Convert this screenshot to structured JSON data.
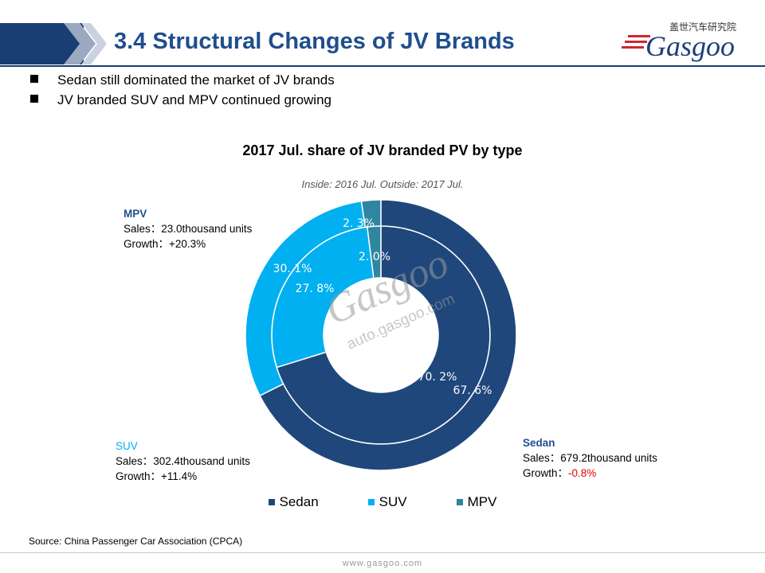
{
  "header": {
    "title": "3.4 Structural Changes of JV Brands",
    "logo_cn": "盖世汽车研究院",
    "logo_en": "Gasgoo"
  },
  "bullets": [
    "Sedan still dominated the market of JV brands",
    "JV branded SUV and MPV continued growing"
  ],
  "annotations": {
    "mpv": {
      "name": "MPV",
      "sales": "Sales：23.0thousand units",
      "growth_prefix": "Growth：",
      "growth": "+20.3%"
    },
    "suv": {
      "name": "SUV",
      "sales": "Sales：302.4thousand units",
      "growth_prefix": "Growth：",
      "growth": "+11.4%"
    },
    "sedan": {
      "name": "Sedan",
      "sales": "Sales：679.2thousand units",
      "growth_prefix": "Growth：",
      "growth": "-0.8%"
    }
  },
  "watermark": {
    "brand": "Gasgoo",
    "url": "auto.gasgoo.com"
  },
  "source": "Source: China Passenger Car Association (CPCA)",
  "footer_url": "www.gasgoo.com",
  "colors": {
    "sedan": "#1f477c",
    "suv": "#00b0f0",
    "mpv": "#2e86a0",
    "title": "#1f4e8c",
    "negative": "#e00000"
  },
  "chart_data": {
    "type": "pie",
    "subtype": "doughnut",
    "title": "2017 Jul. share of JV branded PV by type",
    "subtitle": "Inside: 2016 Jul.  Outside: 2017 Jul.",
    "categories": [
      "Sedan",
      "SUV",
      "MPV"
    ],
    "series": [
      {
        "name": "2016 Jul.",
        "ring": "inner",
        "values": [
          70.2,
          27.8,
          2.0
        ],
        "labels": [
          "70. 2%",
          "27. 8%",
          "2. 0%"
        ]
      },
      {
        "name": "2017 Jul.",
        "ring": "outer",
        "values": [
          67.6,
          30.1,
          2.3
        ],
        "labels": [
          "67. 6%",
          "30. 1%",
          "2. 3%"
        ]
      }
    ],
    "legend": [
      "Sedan",
      "SUV",
      "MPV"
    ],
    "legend_position": "bottom"
  }
}
